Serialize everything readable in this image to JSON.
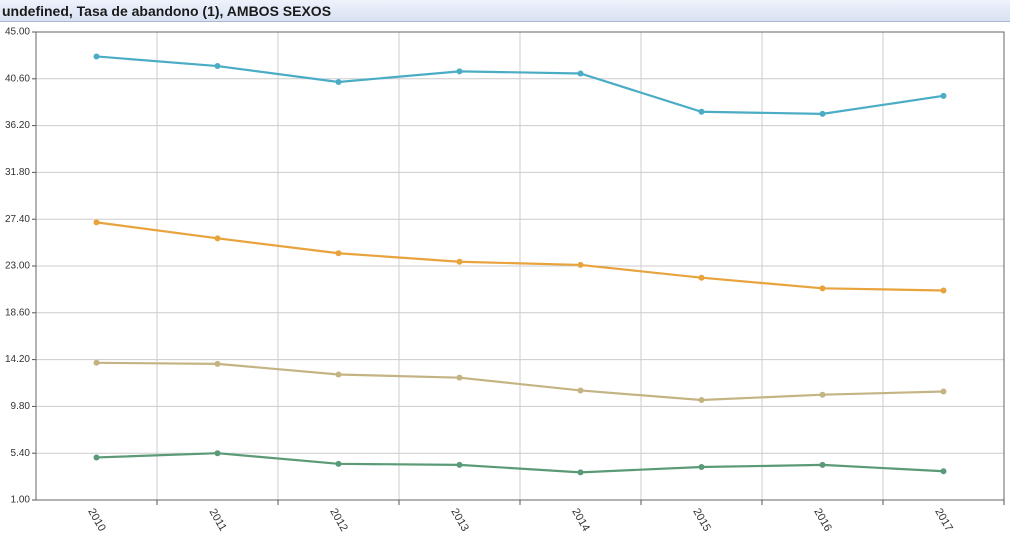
{
  "chart_data": {
    "type": "line",
    "title": "undefined, Tasa de abandono (1), AMBOS SEXOS",
    "categories": [
      "2010",
      "2011",
      "2012",
      "2013",
      "2014",
      "2015",
      "2016",
      "2017"
    ],
    "series": [
      {
        "color": "#4bacc6",
        "values": [
          42.7,
          41.8,
          40.3,
          41.3,
          41.1,
          37.5,
          37.3,
          39.0
        ]
      },
      {
        "color": "#e8a33d",
        "values": [
          27.1,
          25.6,
          24.2,
          23.4,
          23.1,
          21.9,
          20.9,
          20.7
        ]
      },
      {
        "color": "#c4b483",
        "values": [
          13.9,
          13.8,
          12.8,
          12.5,
          11.3,
          10.4,
          10.9,
          11.2
        ]
      },
      {
        "color": "#5a9a76",
        "values": [
          5.0,
          5.4,
          4.4,
          4.3,
          3.6,
          4.1,
          4.3,
          3.7
        ]
      }
    ],
    "ylim": [
      1,
      45
    ],
    "yticks": [
      {
        "value": 1,
        "label": "1.00"
      },
      {
        "value": 5.4,
        "label": "5.40"
      },
      {
        "value": 9.8,
        "label": "9.80"
      },
      {
        "value": 14.2,
        "label": "14.20"
      },
      {
        "value": 18.6,
        "label": "18.60"
      },
      {
        "value": 23,
        "label": "23.00"
      },
      {
        "value": 27.4,
        "label": "27.40"
      },
      {
        "value": 31.8,
        "label": "31.80"
      },
      {
        "value": 36.2,
        "label": "36.20"
      },
      {
        "value": 40.6,
        "label": "40.60"
      },
      {
        "value": 45,
        "label": "45.00"
      }
    ],
    "grid": true
  }
}
